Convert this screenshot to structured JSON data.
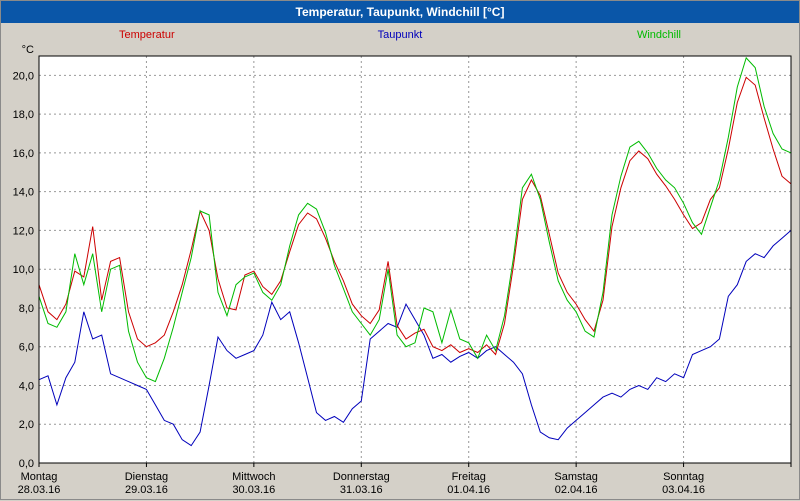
{
  "window": {
    "title": "Temperatur, Taupunkt, Windchill [°C]"
  },
  "legend": [
    {
      "label": "Temperatur",
      "color": "#cc0000"
    },
    {
      "label": "Taupunkt",
      "color": "#0000bb"
    },
    {
      "label": "Windchill",
      "color": "#00bb00"
    }
  ],
  "chart_data": {
    "type": "line",
    "title": "Temperatur, Taupunkt, Windchill [°C]",
    "xlabel": "",
    "ylabel": "°C",
    "ylim": [
      0,
      21
    ],
    "ytick_step": 2,
    "ytick_labels": [
      "0,0",
      "2,0",
      "4,0",
      "6,0",
      "8,0",
      "10,0",
      "12,0",
      "14,0",
      "16,0",
      "18,0",
      "20,0"
    ],
    "grid": "dashed",
    "legend_position": "top",
    "x_unit": "hours, 2h sampling across 7 days",
    "days": [
      {
        "name": "Montag",
        "date": "28.03.16"
      },
      {
        "name": "Dienstag",
        "date": "29.03.16"
      },
      {
        "name": "Mittwoch",
        "date": "30.03.16"
      },
      {
        "name": "Donnerstag",
        "date": "31.03.16"
      },
      {
        "name": "Freitag",
        "date": "01.04.16"
      },
      {
        "name": "Samstag",
        "date": "02.04.16"
      },
      {
        "name": "Sonntag",
        "date": "03.04.16"
      }
    ],
    "series": [
      {
        "name": "Taupunkt",
        "color": "#0000bb",
        "values": [
          4.3,
          4.5,
          3.0,
          4.4,
          5.2,
          7.8,
          6.4,
          6.6,
          4.6,
          4.4,
          4.2,
          4.0,
          3.8,
          3.0,
          2.2,
          2.0,
          1.2,
          0.9,
          1.6,
          4.0,
          6.5,
          5.8,
          5.4,
          5.6,
          5.8,
          6.6,
          8.3,
          7.4,
          7.8,
          6.2,
          4.4,
          2.6,
          2.2,
          2.4,
          2.1,
          2.8,
          3.2,
          6.4,
          6.8,
          7.2,
          7.0,
          8.2,
          7.4,
          6.6,
          5.4,
          5.6,
          5.2,
          5.5,
          5.7,
          5.4,
          5.8,
          6.0,
          5.6,
          5.2,
          4.6,
          3.0,
          1.6,
          1.3,
          1.2,
          1.8,
          2.2,
          2.6,
          3.0,
          3.4,
          3.6,
          3.4,
          3.8,
          4.0,
          3.8,
          4.4,
          4.2,
          4.6,
          4.4,
          5.6,
          5.8,
          6.0,
          6.4,
          8.6,
          9.2,
          10.4,
          10.8,
          10.6,
          11.2,
          11.6,
          12.0
        ]
      },
      {
        "name": "Temperatur",
        "color": "#cc0000",
        "values": [
          9.2,
          7.8,
          7.4,
          8.2,
          9.9,
          9.6,
          12.2,
          8.4,
          10.4,
          10.6,
          7.8,
          6.4,
          6.0,
          6.2,
          6.6,
          7.8,
          9.2,
          11.0,
          13.0,
          12.0,
          9.5,
          8.0,
          7.9,
          9.7,
          9.9,
          9.1,
          8.7,
          9.4,
          10.9,
          12.3,
          12.9,
          12.6,
          11.6,
          10.4,
          9.4,
          8.2,
          7.6,
          7.2,
          7.9,
          10.4,
          7.1,
          6.4,
          6.7,
          6.9,
          6.0,
          5.8,
          6.1,
          5.7,
          5.9,
          5.7,
          6.1,
          5.6,
          7.2,
          10.2,
          13.6,
          14.6,
          13.8,
          11.8,
          9.8,
          8.8,
          8.2,
          7.4,
          6.8,
          8.4,
          12.2,
          14.2,
          15.6,
          16.1,
          15.7,
          14.9,
          14.3,
          13.6,
          12.8,
          12.1,
          12.4,
          13.6,
          14.2,
          16.2,
          18.6,
          19.9,
          19.5,
          17.8,
          16.2,
          14.8,
          14.4
        ]
      },
      {
        "name": "Windchill",
        "color": "#00bb00",
        "values": [
          8.6,
          7.2,
          7.0,
          7.8,
          10.8,
          9.2,
          10.8,
          7.8,
          10.0,
          10.2,
          6.8,
          5.2,
          4.4,
          4.2,
          5.4,
          7.0,
          8.8,
          10.6,
          13.0,
          12.8,
          8.8,
          7.6,
          9.2,
          9.6,
          9.8,
          8.8,
          8.4,
          9.2,
          11.2,
          12.8,
          13.4,
          13.1,
          11.9,
          10.2,
          9.0,
          7.8,
          7.2,
          6.6,
          7.4,
          10.0,
          6.6,
          6.0,
          6.2,
          8.0,
          7.8,
          6.2,
          7.9,
          6.4,
          6.2,
          5.4,
          6.6,
          5.8,
          7.6,
          10.6,
          14.2,
          14.9,
          13.6,
          11.4,
          9.4,
          8.4,
          7.8,
          6.8,
          6.5,
          8.8,
          12.8,
          14.8,
          16.3,
          16.6,
          16.0,
          15.2,
          14.6,
          14.2,
          13.4,
          12.4,
          11.8,
          13.2,
          14.6,
          16.8,
          19.4,
          20.9,
          20.4,
          18.4,
          17.0,
          16.2,
          16.0
        ]
      }
    ]
  }
}
